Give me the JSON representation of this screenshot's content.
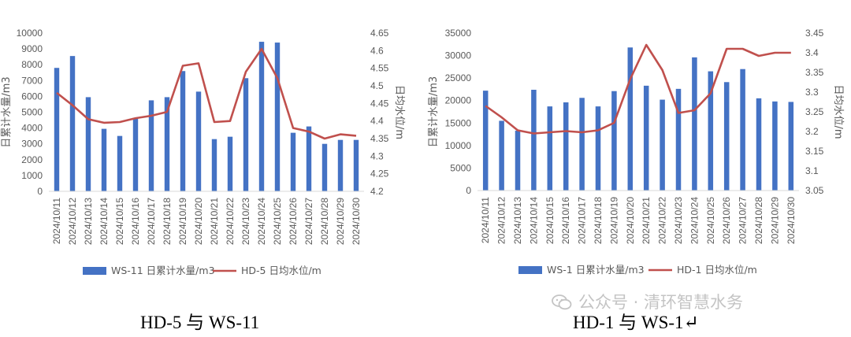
{
  "chart_data": [
    {
      "type": "bar",
      "title": "",
      "categories": [
        "2024/10/11",
        "2024/10/12",
        "2024/10/13",
        "2024/10/14",
        "2024/10/15",
        "2024/10/16",
        "2024/10/17",
        "2024/10/18",
        "2024/10/19",
        "2024/10/20",
        "2024/10/21",
        "2024/10/22",
        "2024/10/23",
        "2024/10/24",
        "2024/10/25",
        "2024/10/26",
        "2024/10/27",
        "2024/10/28",
        "2024/10/29",
        "2024/10/30"
      ],
      "series": [
        {
          "name": "WS-11 日累计水量/m3",
          "type": "bar",
          "axis": "left",
          "color": "#4472c4",
          "values": [
            7800,
            8550,
            5950,
            3950,
            3500,
            4650,
            5750,
            5950,
            7600,
            6300,
            3300,
            3450,
            7150,
            9450,
            9400,
            3700,
            4100,
            3000,
            3250,
            3250
          ]
        },
        {
          "name": "HD-5 日均水位/m",
          "type": "line",
          "axis": "right",
          "color": "#c0504d",
          "values": [
            4.48,
            4.445,
            4.405,
            4.395,
            4.397,
            4.408,
            4.415,
            4.426,
            4.557,
            4.564,
            4.397,
            4.4,
            4.54,
            4.605,
            4.522,
            4.38,
            4.37,
            4.35,
            4.362,
            4.358
          ]
        }
      ],
      "yleft": {
        "label": "日累计水量/m3",
        "min": 0,
        "max": 10000,
        "step": 1000,
        "ticks": [
          "0",
          "1000",
          "2000",
          "3000",
          "4000",
          "5000",
          "6000",
          "7000",
          "8000",
          "9000",
          "10000"
        ]
      },
      "yright": {
        "label": "日均水位/m",
        "min": 4.2,
        "max": 4.65,
        "step": 0.05,
        "ticks": [
          "4.2",
          "4.25",
          "4.3",
          "4.35",
          "4.4",
          "4.45",
          "4.5",
          "4.55",
          "4.6",
          "4.65"
        ]
      },
      "legend": [
        "WS-11 日累计水量/m3",
        "HD-5 日均水位/m"
      ],
      "grid": false
    },
    {
      "type": "bar",
      "title": "",
      "categories": [
        "2024/10/11",
        "2024/10/12",
        "2024/10/13",
        "2024/10/14",
        "2024/10/15",
        "2024/10/16",
        "2024/10/17",
        "2024/10/18",
        "2024/10/19",
        "2024/10/20",
        "2024/10/21",
        "2024/10/22",
        "2024/10/23",
        "2024/10/24",
        "2024/10/25",
        "2024/10/26",
        "2024/10/27",
        "2024/10/28",
        "2024/10/29",
        "2024/10/30"
      ],
      "series": [
        {
          "name": "WS-1 日累计水量/m3",
          "type": "bar",
          "axis": "left",
          "color": "#4472c4",
          "values": [
            22200,
            15500,
            13300,
            22400,
            18700,
            19600,
            20600,
            18700,
            22100,
            31800,
            23300,
            20200,
            22600,
            29600,
            26500,
            24100,
            27000,
            20500,
            19800,
            19700
          ]
        },
        {
          "name": "HD-1 日均水位/m",
          "type": "line",
          "axis": "right",
          "color": "#c0504d",
          "values": [
            3.265,
            3.236,
            3.203,
            3.195,
            3.198,
            3.201,
            3.198,
            3.203,
            3.222,
            3.333,
            3.42,
            3.356,
            3.247,
            3.254,
            3.297,
            3.41,
            3.41,
            3.392,
            3.4,
            3.4
          ]
        }
      ],
      "yleft": {
        "label": "日累计水量/m3",
        "min": 0,
        "max": 35000,
        "step": 5000,
        "ticks": [
          "0",
          "5000",
          "10000",
          "15000",
          "20000",
          "25000",
          "30000",
          "35000"
        ]
      },
      "yright": {
        "label": "日均水位/m",
        "min": 3.05,
        "max": 3.45,
        "step": 0.05,
        "ticks": [
          "3.05",
          "3.1",
          "3.15",
          "3.2",
          "3.25",
          "3.3",
          "3.35",
          "3.4",
          "3.45"
        ]
      },
      "legend": [
        "WS-1 日累计水量/m3",
        "HD-1 日均水位/m"
      ],
      "grid": false
    }
  ],
  "captions": {
    "left": "HD-5 与 WS-11",
    "right": "HD-1 与 WS-1↵"
  },
  "watermark": {
    "text": "公众号 · 清环智慧水务",
    "icon": "wechat-icon"
  }
}
